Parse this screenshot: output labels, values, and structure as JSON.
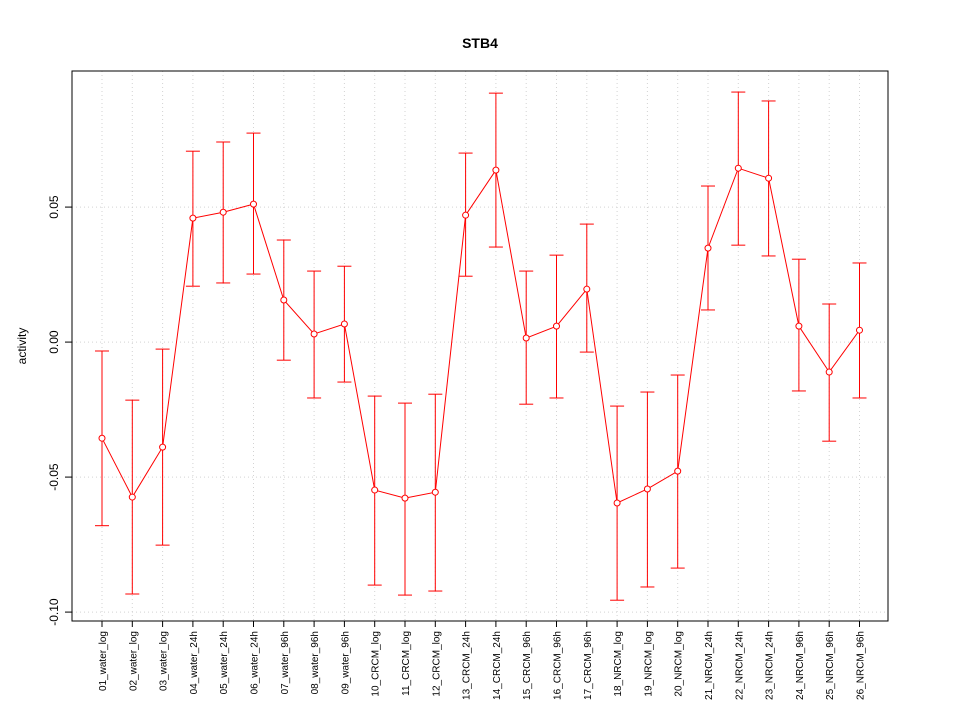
{
  "chart_data": {
    "type": "line",
    "title": "STB4",
    "xlabel": "",
    "ylabel": "activity",
    "ylim": [
      -0.1033,
      0.1004
    ],
    "yticks": [
      -0.1,
      -0.05,
      0.0,
      0.05
    ],
    "ytick_labels": [
      "-0.10",
      "-0.05",
      "0.00",
      "0.05"
    ],
    "grid": true,
    "color": "#ff0000",
    "categories": [
      "01_water_log",
      "02_water_log",
      "03_water_log",
      "04_water_24h",
      "05_water_24h",
      "06_water_24h",
      "07_water_96h",
      "08_water_96h",
      "09_water_96h",
      "10_CRCM_log",
      "11_CRCM_log",
      "12_CRCM_log",
      "13_CRCM_24h",
      "14_CRCM_24h",
      "15_CRCM_96h",
      "16_CRCM_96h",
      "17_CRCM_96h",
      "18_NRCM_log",
      "19_NRCM_log",
      "20_NRCM_log",
      "21_NRCM_24h",
      "22_NRCM_24h",
      "23_NRCM_24h",
      "24_NRCM_96h",
      "25_NRCM_96h",
      "26_NRCM_96h"
    ],
    "values": [
      -0.0356,
      -0.0574,
      -0.0389,
      0.0459,
      0.0481,
      0.0511,
      0.0156,
      0.003,
      0.0067,
      -0.0548,
      -0.0578,
      -0.0556,
      0.047,
      0.0637,
      0.0015,
      0.0059,
      0.0196,
      -0.0596,
      -0.0544,
      -0.0478,
      0.0348,
      0.0644,
      0.0607,
      0.0059,
      -0.0111,
      0.0044
    ],
    "upper": [
      -0.0033,
      -0.0215,
      -0.0026,
      0.0707,
      0.0741,
      0.0774,
      0.0378,
      0.0263,
      0.0281,
      -0.02,
      -0.0226,
      -0.0193,
      0.07,
      0.0922,
      0.0263,
      0.0322,
      0.0437,
      -0.0237,
      -0.0185,
      -0.0122,
      0.0578,
      0.0926,
      0.0893,
      0.0307,
      0.0141,
      0.0293
    ],
    "lower": [
      -0.068,
      -0.0933,
      -0.0752,
      0.0207,
      0.0219,
      0.0252,
      -0.0067,
      -0.0207,
      -0.0148,
      -0.09,
      -0.0937,
      -0.0922,
      0.0244,
      0.0352,
      -0.023,
      -0.0207,
      -0.0037,
      -0.0956,
      -0.0907,
      -0.0837,
      0.0119,
      0.0359,
      0.0319,
      -0.0181,
      -0.0367,
      -0.0207
    ]
  }
}
